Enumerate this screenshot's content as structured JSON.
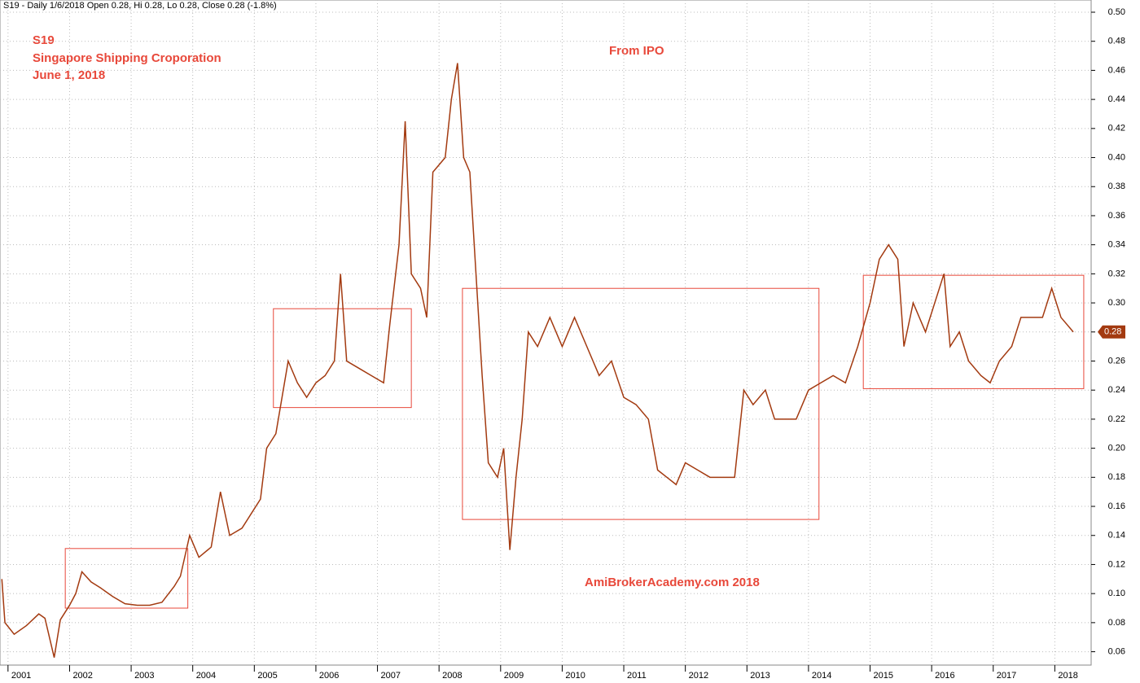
{
  "chart_data": {
    "type": "line",
    "header": "S19 - Daily 1/6/2018 Open 0.28, Hi 0.28, Lo 0.28, Close 0.28 (-1.8%)",
    "annotations": [
      "S19",
      "Singapore Shipping Croporation",
      "June 1, 2018",
      "From IPO",
      "AmiBrokerAcademy.com  2018"
    ],
    "last_price": 0.28,
    "xlim": [
      2000.87,
      2018.59
    ],
    "xticks": [
      2001,
      2002,
      2003,
      2004,
      2005,
      2006,
      2007,
      2008,
      2009,
      2010,
      2011,
      2012,
      2013,
      2014,
      2015,
      2016,
      2017,
      2018
    ],
    "ylim": [
      0.0508,
      0.5084
    ],
    "yticks": [
      0.06,
      0.08,
      {
        "value": 0.1,
        "label": "0.10"
      },
      0.12,
      0.14,
      0.16,
      0.18,
      {
        "value": 0.2,
        "label": "0.20"
      },
      0.22,
      0.24,
      0.26,
      0.28,
      {
        "value": 0.3,
        "label": "0.30"
      },
      0.32,
      0.34,
      0.36,
      0.38,
      {
        "value": 0.4,
        "label": "0.40"
      },
      0.42,
      0.44,
      0.46,
      0.48,
      {
        "value": 0.5,
        "label": "0.50"
      }
    ],
    "grid": true,
    "x": [
      2000.9,
      2000.95,
      2001.1,
      2001.3,
      2001.5,
      2001.6,
      2001.75,
      2001.85,
      2002.0,
      2002.1,
      2002.2,
      2002.35,
      2002.5,
      2002.7,
      2002.9,
      2003.1,
      2003.3,
      2003.5,
      2003.7,
      2003.8,
      2003.95,
      2004.1,
      2004.3,
      2004.45,
      2004.6,
      2004.8,
      2004.95,
      2005.1,
      2005.2,
      2005.35,
      2005.45,
      2005.55,
      2005.7,
      2005.85,
      2006.0,
      2006.15,
      2006.3,
      2006.4,
      2006.5,
      2006.7,
      2006.9,
      2007.1,
      2007.2,
      2007.35,
      2007.45,
      2007.55,
      2007.7,
      2007.8,
      2007.9,
      2008.0,
      2008.1,
      2008.2,
      2008.3,
      2008.4,
      2008.5,
      2008.6,
      2008.7,
      2008.8,
      2008.95,
      2009.05,
      2009.15,
      2009.25,
      2009.35,
      2009.45,
      2009.6,
      2009.8,
      2010.0,
      2010.2,
      2010.4,
      2010.6,
      2010.8,
      2011.0,
      2011.2,
      2011.4,
      2011.55,
      2011.7,
      2011.85,
      2012.0,
      2012.2,
      2012.4,
      2012.6,
      2012.8,
      2012.95,
      2013.1,
      2013.3,
      2013.45,
      2013.6,
      2013.8,
      2014.0,
      2014.2,
      2014.4,
      2014.6,
      2014.8,
      2015.0,
      2015.15,
      2015.3,
      2015.45,
      2015.55,
      2015.7,
      2015.9,
      2016.05,
      2016.2,
      2016.3,
      2016.45,
      2016.6,
      2016.8,
      2016.95,
      2017.1,
      2017.3,
      2017.45,
      2017.6,
      2017.8,
      2017.95,
      2018.1,
      2018.3
    ],
    "series": [
      {
        "name": "S19",
        "color": "#a33a10",
        "values": [
          0.11,
          0.08,
          0.072,
          0.078,
          0.086,
          0.083,
          0.056,
          0.082,
          0.092,
          0.1,
          0.115,
          0.108,
          0.104,
          0.098,
          0.093,
          0.092,
          0.092,
          0.094,
          0.105,
          0.112,
          0.14,
          0.125,
          0.132,
          0.17,
          0.14,
          0.145,
          0.155,
          0.165,
          0.2,
          0.21,
          0.235,
          0.26,
          0.245,
          0.235,
          0.245,
          0.25,
          0.26,
          0.32,
          0.26,
          0.255,
          0.25,
          0.245,
          0.285,
          0.34,
          0.425,
          0.32,
          0.31,
          0.29,
          0.39,
          0.395,
          0.4,
          0.44,
          0.465,
          0.4,
          0.39,
          0.32,
          0.25,
          0.19,
          0.18,
          0.2,
          0.13,
          0.18,
          0.22,
          0.28,
          0.27,
          0.29,
          0.27,
          0.29,
          0.27,
          0.25,
          0.26,
          0.235,
          0.23,
          0.22,
          0.185,
          0.18,
          0.175,
          0.19,
          0.185,
          0.18,
          0.18,
          0.18,
          0.24,
          0.23,
          0.24,
          0.22,
          0.22,
          0.22,
          0.24,
          0.245,
          0.25,
          0.245,
          0.27,
          0.3,
          0.33,
          0.34,
          0.33,
          0.27,
          0.3,
          0.28,
          0.3,
          0.32,
          0.27,
          0.28,
          0.26,
          0.25,
          0.245,
          0.26,
          0.27,
          0.29,
          0.29,
          0.29,
          0.31,
          0.29,
          0.28
        ]
      }
    ],
    "zones": [
      {
        "x": [
          2001.93,
          2003.92
        ],
        "y": [
          0.09,
          0.131
        ]
      },
      {
        "x": [
          2005.31,
          2007.55
        ],
        "y": [
          0.228,
          0.296
        ]
      },
      {
        "x": [
          2008.38,
          2014.17
        ],
        "y": [
          0.151,
          0.31
        ]
      },
      {
        "x": [
          2014.89,
          2018.47
        ],
        "y": [
          0.241,
          0.319
        ]
      }
    ]
  }
}
